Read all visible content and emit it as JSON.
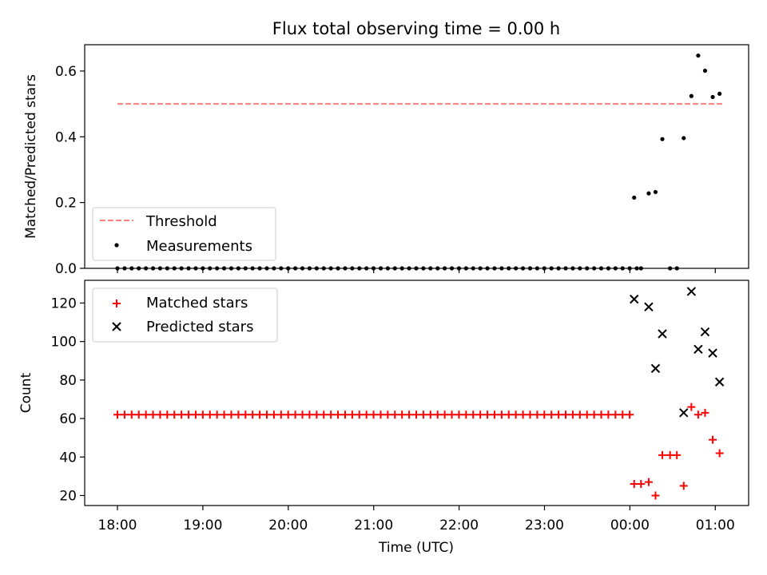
{
  "chart_data": {
    "type": "scatter",
    "title": "Flux total observing time = 0.00 h",
    "xlabel": "Time (UTC)",
    "x_ticks": [
      "18:00",
      "19:00",
      "20:00",
      "21:00",
      "22:00",
      "23:00",
      "00:00",
      "01:00"
    ],
    "panels": [
      {
        "ylabel": "Matched/Predicted stars",
        "ylim": [
          0,
          0.68
        ],
        "y_ticks": [
          "0.0",
          "0.2",
          "0.4",
          "0.6"
        ],
        "legend": "lower-left",
        "series": [
          {
            "name": "Threshold",
            "style": "dashed-line",
            "color": "#ff7f7f",
            "x_range": [
              0.0,
              7.08
            ],
            "value": 0.5
          },
          {
            "name": "Measurements",
            "style": "dot",
            "color": "#000000",
            "zero_run": {
              "start": 0.0,
              "end": 6.1,
              "step": 0.0833,
              "value": 0.0
            },
            "points": [
              [
                6.05,
                0.215
              ],
              [
                6.13,
                0.0
              ],
              [
                6.22,
                0.228
              ],
              [
                6.3,
                0.232
              ],
              [
                6.38,
                0.393
              ],
              [
                6.47,
                0.0
              ],
              [
                6.55,
                0.0
              ],
              [
                6.63,
                0.396
              ],
              [
                6.72,
                0.524
              ],
              [
                6.8,
                0.647
              ],
              [
                6.88,
                0.601
              ],
              [
                6.97,
                0.521
              ],
              [
                7.05,
                0.531
              ]
            ]
          }
        ]
      },
      {
        "ylabel": "Count",
        "ylim": [
          14.8,
          131.8
        ],
        "y_ticks": [
          "20",
          "40",
          "60",
          "80",
          "100",
          "120"
        ],
        "legend": "top-left",
        "series": [
          {
            "name": "Matched stars",
            "style": "plus",
            "color": "#ff0000",
            "zero_run": {
              "start": 0.0,
              "end": 6.0,
              "step": 0.0833,
              "value": 62
            },
            "points": [
              [
                6.05,
                26
              ],
              [
                6.13,
                26
              ],
              [
                6.22,
                27
              ],
              [
                6.3,
                20
              ],
              [
                6.38,
                41
              ],
              [
                6.47,
                41
              ],
              [
                6.55,
                41
              ],
              [
                6.63,
                25
              ],
              [
                6.72,
                66
              ],
              [
                6.8,
                62
              ],
              [
                6.88,
                63
              ],
              [
                6.97,
                49
              ],
              [
                7.05,
                42
              ]
            ]
          },
          {
            "name": "Predicted stars",
            "style": "cross",
            "color": "#000000",
            "points": [
              [
                6.05,
                122
              ],
              [
                6.22,
                118
              ],
              [
                6.3,
                86
              ],
              [
                6.38,
                104
              ],
              [
                6.63,
                63
              ],
              [
                6.72,
                126
              ],
              [
                6.8,
                96
              ],
              [
                6.88,
                105
              ],
              [
                6.97,
                94
              ],
              [
                7.05,
                79
              ]
            ]
          }
        ]
      }
    ]
  }
}
